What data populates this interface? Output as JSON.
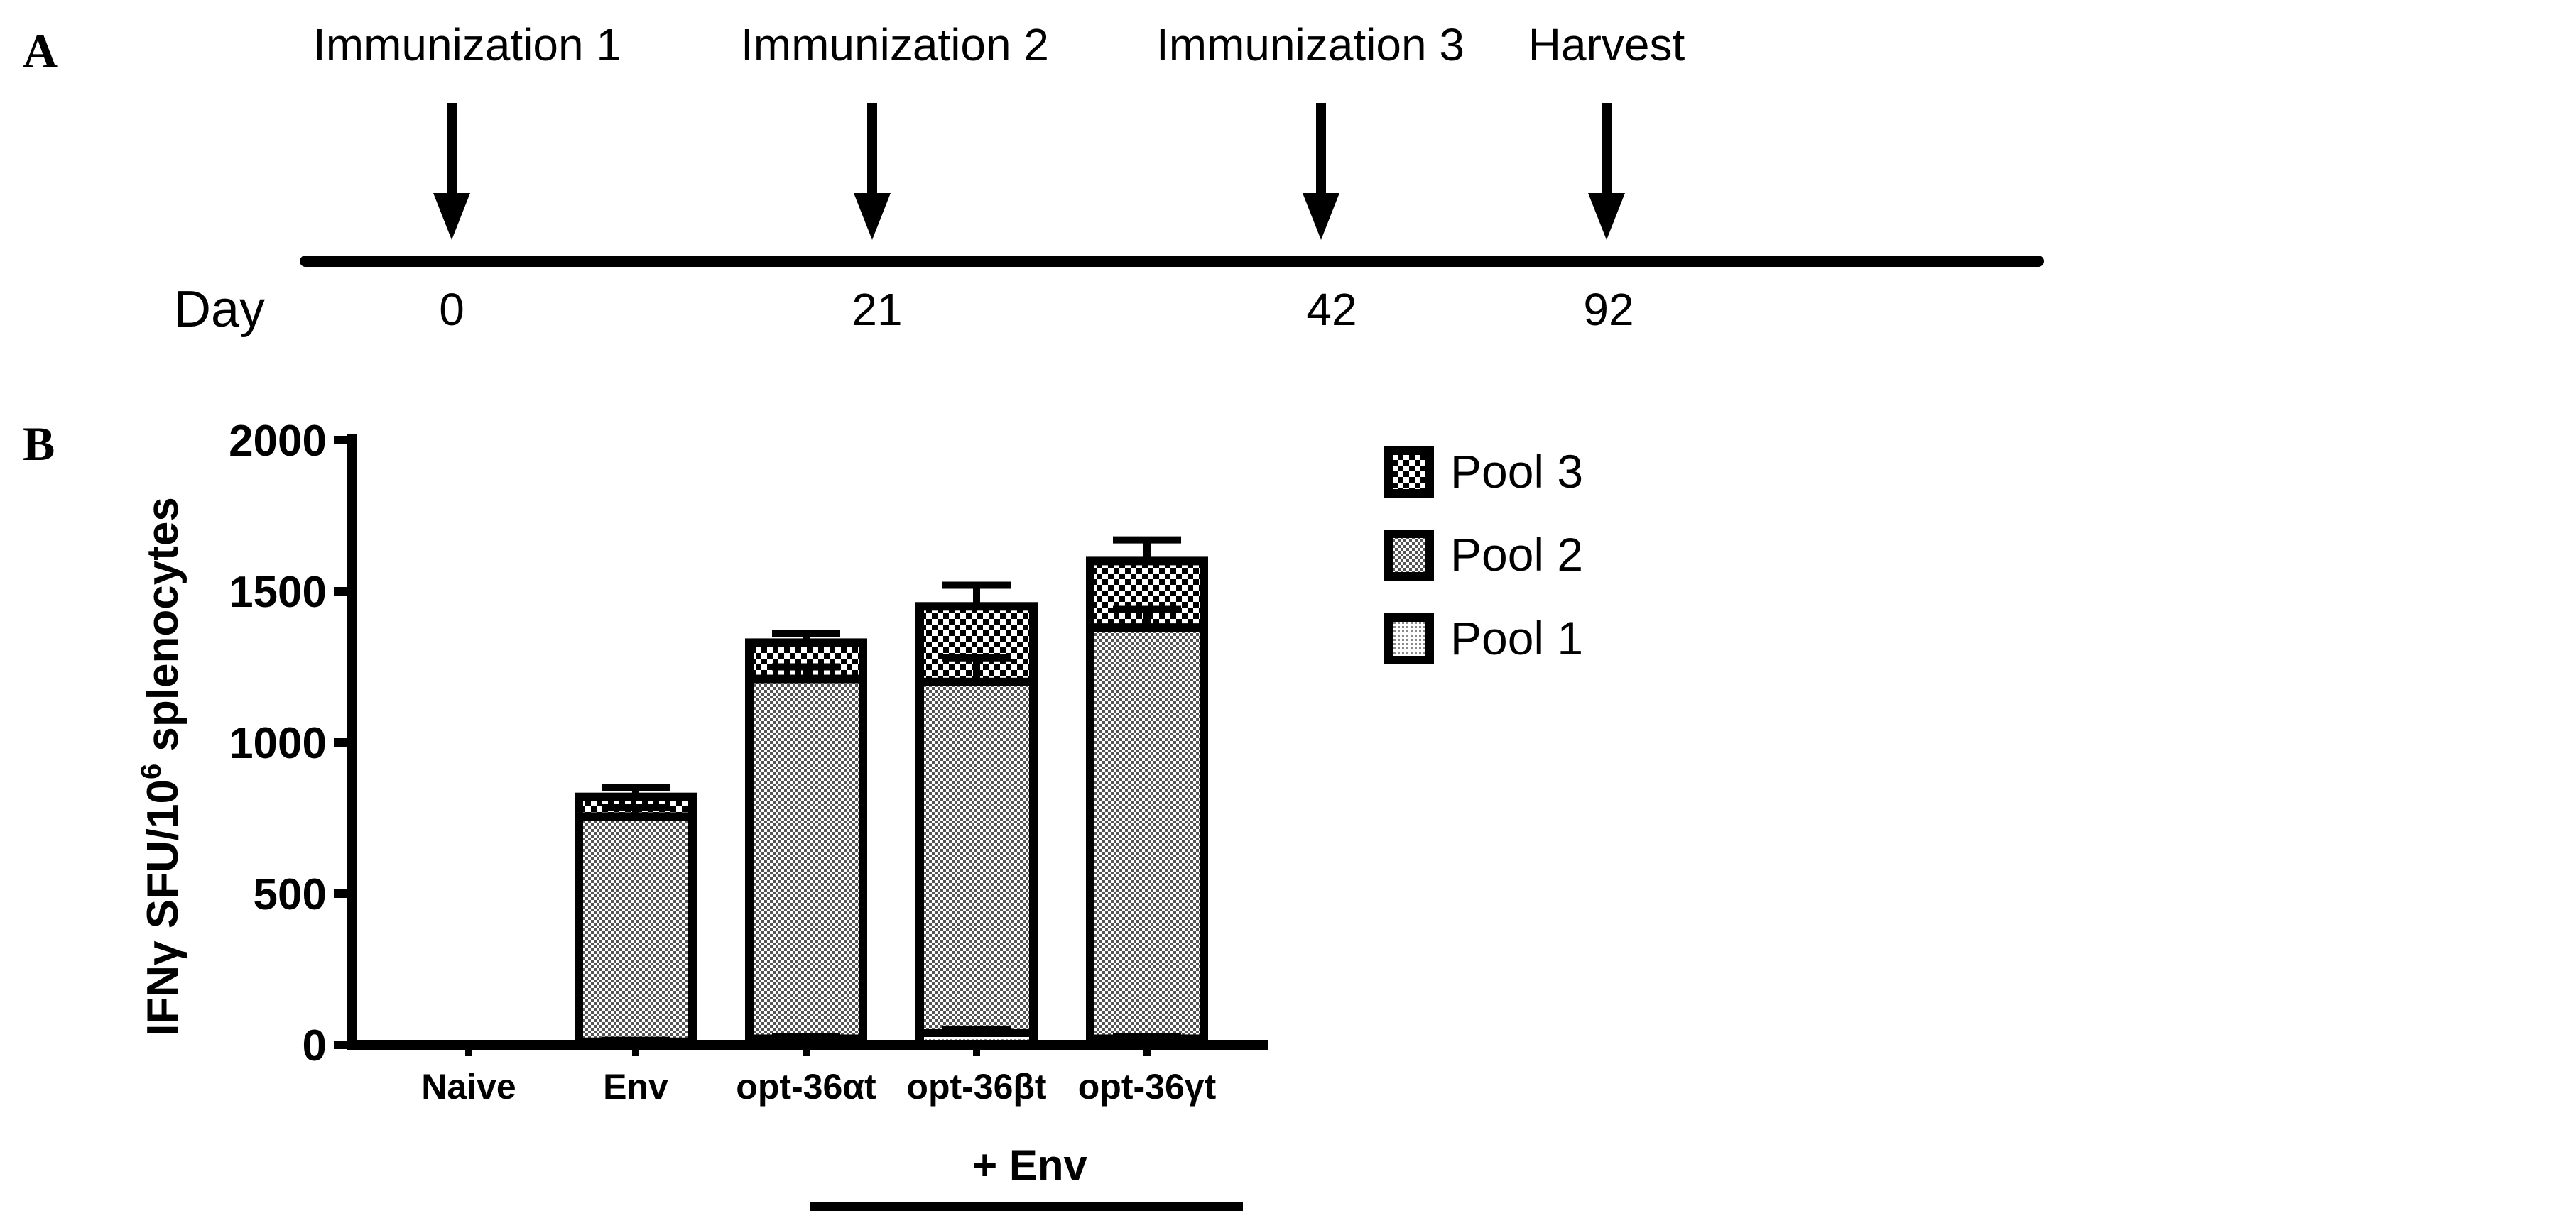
{
  "panel_a": {
    "label": "A",
    "axis_label": "Day",
    "events": [
      {
        "name": "Immunization 1",
        "day": "0",
        "day_value": 0
      },
      {
        "name": "Immunization 2",
        "day": "21",
        "day_value": 21
      },
      {
        "name": "Immunization 3",
        "day": "42",
        "day_value": 42
      },
      {
        "name": "Harvest",
        "day": "92",
        "day_value": 92
      }
    ]
  },
  "panel_b": {
    "label": "B",
    "group_label": "+ Env"
  },
  "chart_data": {
    "type": "bar",
    "stacked": true,
    "categories": [
      "Naive",
      "Env",
      "opt-36αt",
      "opt-36βt",
      "opt-36γt"
    ],
    "ylabel_main": "IFNγ SFU/10",
    "ylabel_sup": "6",
    "ylabel_tail": " splenocytes",
    "ylim": [
      0,
      2000
    ],
    "yticks": [
      "0",
      "500",
      "1000",
      "1500",
      "2000"
    ],
    "ytick_values": [
      0,
      500,
      1000,
      1500,
      2000
    ],
    "legend_position": "top-right",
    "series": [
      {
        "name": "Pool 1",
        "pattern": "fine-dots",
        "values": [
          0,
          10,
          20,
          40,
          20
        ],
        "errors": [
          0,
          5,
          8,
          12,
          8
        ]
      },
      {
        "name": "Pool 2",
        "pattern": "medium-check",
        "values": [
          0,
          745,
          1190,
          1160,
          1360
        ],
        "errors": [
          0,
          30,
          40,
          80,
          60
        ]
      },
      {
        "name": "Pool 3",
        "pattern": "coarse-check",
        "values": [
          0,
          65,
          120,
          250,
          220
        ],
        "errors": [
          0,
          30,
          30,
          70,
          70
        ]
      }
    ]
  }
}
